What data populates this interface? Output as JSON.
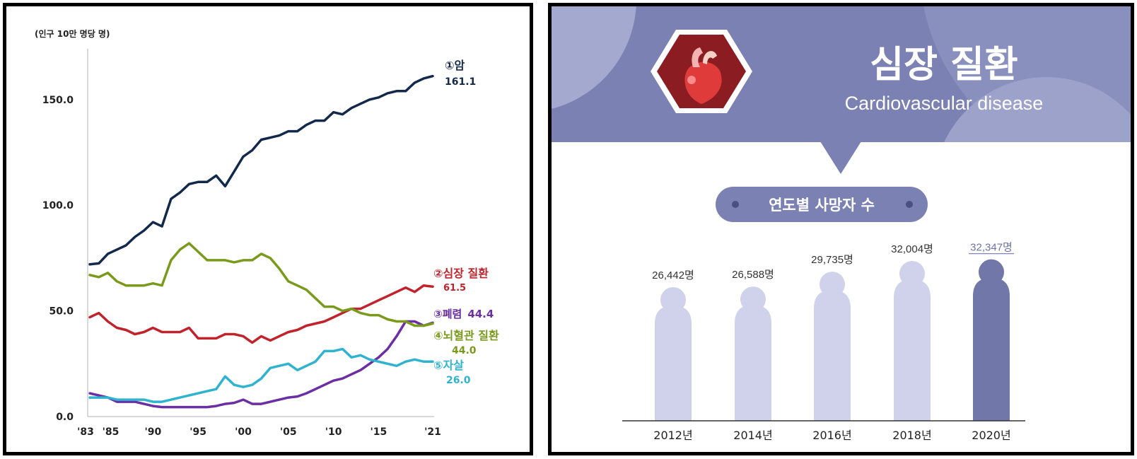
{
  "chart_data": [
    {
      "type": "line",
      "title": "",
      "ylabel": "(인구 10만 명당 명)",
      "xlabel": "",
      "ylim": [
        0,
        170
      ],
      "xlim": [
        1983,
        2021
      ],
      "yticks": [
        "0.0",
        "50.0",
        "100.0",
        "150.0"
      ],
      "ytick_values": [
        0,
        50,
        100,
        150
      ],
      "xticks": [
        "'83",
        "'85",
        "'90",
        "'95",
        "'00",
        "'05",
        "'10",
        "'15",
        "'21"
      ],
      "xtick_values": [
        1983,
        1985,
        1990,
        1995,
        2000,
        2005,
        2010,
        2015,
        2021
      ],
      "grid": false,
      "series": [
        {
          "name": "①암",
          "end_label": "161.1",
          "color": "#13294b",
          "x": [
            1983,
            1984,
            1985,
            1986,
            1987,
            1988,
            1989,
            1990,
            1991,
            1992,
            1993,
            1994,
            1995,
            1996,
            1997,
            1998,
            1999,
            2000,
            2001,
            2002,
            2003,
            2004,
            2005,
            2006,
            2007,
            2008,
            2009,
            2010,
            2011,
            2012,
            2013,
            2014,
            2015,
            2016,
            2017,
            2018,
            2019,
            2020,
            2021
          ],
          "values": [
            72,
            72.5,
            77,
            79,
            81,
            85,
            88,
            92,
            90,
            103,
            106,
            110,
            111,
            111,
            114,
            109,
            116,
            123,
            126,
            131,
            132,
            133,
            135,
            135,
            138,
            140,
            140,
            144,
            143,
            146,
            148,
            150,
            151,
            153,
            154,
            154,
            158,
            160,
            161.1
          ]
        },
        {
          "name": "②심장 질환",
          "end_label": "61.5",
          "color": "#c0232c",
          "x": [
            1983,
            1984,
            1985,
            1986,
            1987,
            1988,
            1989,
            1990,
            1991,
            1992,
            1993,
            1994,
            1995,
            1996,
            1997,
            1998,
            1999,
            2000,
            2001,
            2002,
            2003,
            2004,
            2005,
            2006,
            2007,
            2008,
            2009,
            2010,
            2011,
            2012,
            2013,
            2014,
            2015,
            2016,
            2017,
            2018,
            2019,
            2020,
            2021
          ],
          "values": [
            47,
            49,
            45,
            42,
            41,
            39,
            40,
            42,
            40,
            40,
            40,
            42,
            37,
            37,
            37,
            39,
            39,
            38,
            35,
            38,
            36,
            38,
            40,
            41,
            43,
            44,
            45,
            47,
            49,
            51,
            51,
            53,
            55,
            57,
            59,
            61,
            59,
            62,
            61.5
          ]
        },
        {
          "name": "③폐렴",
          "end_label": "44.4",
          "color": "#6b2fa3",
          "x": [
            1983,
            1984,
            1985,
            1986,
            1987,
            1988,
            1989,
            1990,
            1991,
            1992,
            1993,
            1994,
            1995,
            1996,
            1997,
            1998,
            1999,
            2000,
            2001,
            2002,
            2003,
            2004,
            2005,
            2006,
            2007,
            2008,
            2009,
            2010,
            2011,
            2012,
            2013,
            2014,
            2015,
            2016,
            2017,
            2018,
            2019,
            2020,
            2021
          ],
          "values": [
            11,
            10,
            9,
            7,
            7,
            7,
            6,
            5,
            4.5,
            4.5,
            4.5,
            4.5,
            4.5,
            4.5,
            5,
            6,
            6.5,
            8,
            6,
            6,
            7,
            8,
            9,
            9.5,
            11,
            13,
            15,
            17,
            18,
            20,
            22,
            25,
            28,
            32,
            38,
            45,
            45,
            43,
            44.4
          ]
        },
        {
          "name": "④뇌혈관 질환",
          "end_label": "44.0",
          "color": "#7a9a1c",
          "x": [
            1983,
            1984,
            1985,
            1986,
            1987,
            1988,
            1989,
            1990,
            1991,
            1992,
            1993,
            1994,
            1995,
            1996,
            1997,
            1998,
            1999,
            2000,
            2001,
            2002,
            2003,
            2004,
            2005,
            2006,
            2007,
            2008,
            2009,
            2010,
            2011,
            2012,
            2013,
            2014,
            2015,
            2016,
            2017,
            2018,
            2019,
            2020,
            2021
          ],
          "values": [
            67,
            66,
            68,
            64,
            62,
            62,
            62,
            63,
            62,
            74,
            79,
            82,
            78,
            74,
            74,
            74,
            73,
            74,
            74,
            77,
            75,
            70,
            64,
            62,
            60,
            56,
            52,
            52,
            50,
            51,
            49,
            48,
            48,
            46,
            45,
            45,
            43,
            43,
            44
          ]
        },
        {
          "name": "⑤자살",
          "end_label": "26.0",
          "color": "#2fb3cf",
          "x": [
            1983,
            1984,
            1985,
            1986,
            1987,
            1988,
            1989,
            1990,
            1991,
            1992,
            1993,
            1994,
            1995,
            1996,
            1997,
            1998,
            1999,
            2000,
            2001,
            2002,
            2003,
            2004,
            2005,
            2006,
            2007,
            2008,
            2009,
            2010,
            2011,
            2012,
            2013,
            2014,
            2015,
            2016,
            2017,
            2018,
            2019,
            2020,
            2021
          ],
          "values": [
            9,
            9,
            9,
            8,
            8,
            8,
            8,
            7,
            7,
            8,
            9,
            10,
            11,
            12,
            13,
            19,
            15,
            14,
            15,
            18,
            23,
            24,
            25,
            22,
            24,
            26,
            31,
            31,
            32,
            28,
            29,
            27,
            26,
            25,
            24,
            26,
            27,
            26,
            26
          ]
        }
      ]
    },
    {
      "type": "bar",
      "title": "심장 질환",
      "subtitle": "Cardiovascular disease",
      "pill": "연도별 사망자 수",
      "categories": [
        "2012년",
        "2014년",
        "2016년",
        "2018년",
        "2020년"
      ],
      "values": [
        26442,
        26588,
        29735,
        32004,
        32347
      ],
      "value_labels": [
        "26,442명",
        "26,588명",
        "29,735명",
        "32,004명",
        "32,347명"
      ],
      "highlight_index": 4,
      "bar_color": "#cfd2ea",
      "highlight_color": "#7277a9",
      "banner_color": "#8a90bb"
    }
  ]
}
